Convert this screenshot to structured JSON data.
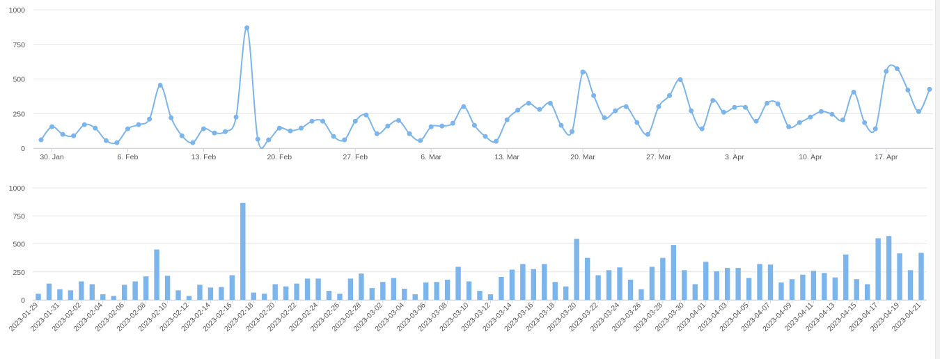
{
  "colors": {
    "series": "#7cb5ec",
    "grid": "#e6e6e6",
    "axis": "#ccd6eb",
    "text": "#555555"
  },
  "chart_data": [
    {
      "type": "line",
      "smooth": true,
      "markers": true,
      "grid": true,
      "ylim": [
        0,
        1000
      ],
      "yticks": [
        "0",
        "250",
        "500",
        "750",
        "1000"
      ],
      "ytick_values": [
        0,
        250,
        500,
        750,
        1000
      ],
      "xticks": [
        "30. Jan",
        "6. Feb",
        "13. Feb",
        "20. Feb",
        "27. Feb",
        "6. Mar",
        "13. Mar",
        "20. Mar",
        "27. Mar",
        "3. Apr",
        "10. Apr",
        "17. Apr"
      ],
      "xtick_dates": [
        "2023-01-30",
        "2023-02-06",
        "2023-02-13",
        "2023-02-20",
        "2023-02-27",
        "2023-03-06",
        "2023-03-13",
        "2023-03-20",
        "2023-03-27",
        "2023-04-03",
        "2023-04-10",
        "2023-04-17"
      ],
      "x_start": "2023-01-29",
      "values": [
        60,
        155,
        100,
        90,
        170,
        145,
        55,
        40,
        140,
        170,
        210,
        455,
        220,
        90,
        40,
        140,
        110,
        120,
        225,
        870,
        65,
        60,
        145,
        125,
        145,
        195,
        195,
        85,
        60,
        195,
        240,
        105,
        160,
        200,
        105,
        55,
        155,
        160,
        180,
        300,
        165,
        85,
        50,
        205,
        275,
        325,
        280,
        325,
        165,
        120,
        550,
        380,
        220,
        270,
        300,
        185,
        100,
        300,
        380,
        495,
        270,
        140,
        345,
        260,
        295,
        295,
        195,
        325,
        320,
        155,
        185,
        225,
        265,
        245,
        205,
        405,
        185,
        140,
        555,
        575,
        420,
        265,
        425
      ]
    },
    {
      "type": "bar",
      "grid": true,
      "ylim": [
        0,
        1000
      ],
      "yticks": [
        "0",
        "250",
        "500",
        "750",
        "1000"
      ],
      "ytick_values": [
        0,
        250,
        500,
        750,
        1000
      ],
      "categories": [
        "2023-01-29",
        "2023-01-30",
        "2023-01-31",
        "2023-02-01",
        "2023-02-02",
        "2023-02-03",
        "2023-02-04",
        "2023-02-05",
        "2023-02-06",
        "2023-02-07",
        "2023-02-08",
        "2023-02-09",
        "2023-02-10",
        "2023-02-11",
        "2023-02-12",
        "2023-02-13",
        "2023-02-14",
        "2023-02-15",
        "2023-02-16",
        "2023-02-17",
        "2023-02-18",
        "2023-02-19",
        "2023-02-20",
        "2023-02-21",
        "2023-02-22",
        "2023-02-23",
        "2023-02-24",
        "2023-02-25",
        "2023-02-26",
        "2023-02-27",
        "2023-02-28",
        "2023-03-01",
        "2023-03-02",
        "2023-03-03",
        "2023-03-04",
        "2023-03-05",
        "2023-03-06",
        "2023-03-07",
        "2023-03-08",
        "2023-03-09",
        "2023-03-10",
        "2023-03-11",
        "2023-03-12",
        "2023-03-13",
        "2023-03-14",
        "2023-03-15",
        "2023-03-16",
        "2023-03-17",
        "2023-03-18",
        "2023-03-19",
        "2023-03-20",
        "2023-03-21",
        "2023-03-22",
        "2023-03-23",
        "2023-03-24",
        "2023-03-25",
        "2023-03-26",
        "2023-03-27",
        "2023-03-28",
        "2023-03-29",
        "2023-03-30",
        "2023-03-31",
        "2023-04-01",
        "2023-04-02",
        "2023-04-03",
        "2023-04-04",
        "2023-04-05",
        "2023-04-06",
        "2023-04-07",
        "2023-04-08",
        "2023-04-09",
        "2023-04-10",
        "2023-04-11",
        "2023-04-12",
        "2023-04-13",
        "2023-04-14",
        "2023-04-15",
        "2023-04-16",
        "2023-04-17",
        "2023-04-18",
        "2023-04-19",
        "2023-04-20",
        "2023-04-21"
      ],
      "values": [
        55,
        145,
        95,
        85,
        165,
        140,
        50,
        35,
        135,
        165,
        210,
        450,
        215,
        85,
        35,
        135,
        110,
        115,
        220,
        865,
        65,
        55,
        140,
        120,
        145,
        190,
        190,
        80,
        55,
        190,
        235,
        105,
        160,
        195,
        100,
        50,
        155,
        160,
        180,
        295,
        165,
        80,
        50,
        205,
        270,
        320,
        275,
        320,
        160,
        120,
        545,
        375,
        220,
        265,
        290,
        180,
        95,
        295,
        375,
        490,
        265,
        140,
        340,
        255,
        285,
        285,
        195,
        320,
        315,
        155,
        185,
        225,
        260,
        240,
        200,
        405,
        185,
        140,
        550,
        570,
        415,
        265,
        420
      ]
    }
  ]
}
